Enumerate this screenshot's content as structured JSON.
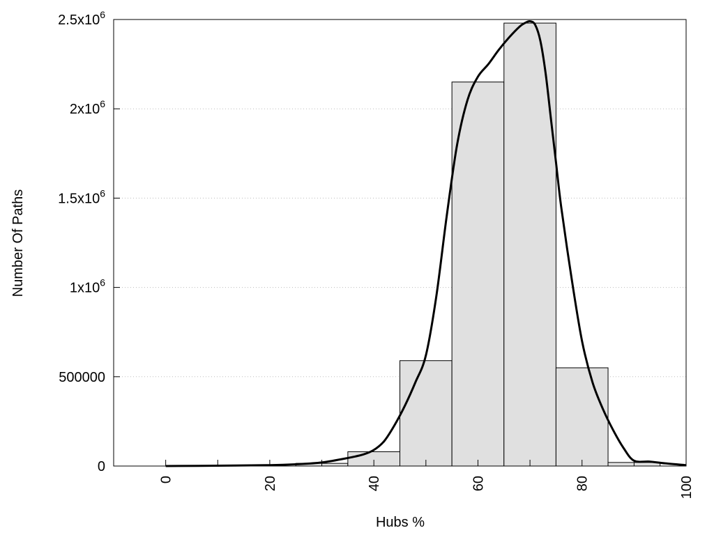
{
  "chart_data": {
    "type": "bar",
    "title": "",
    "xlabel": "Hubs %",
    "ylabel": "Number Of Paths",
    "xlim": [
      -10,
      100
    ],
    "ylim": [
      0,
      2500000
    ],
    "grid": "horizontal-dotted",
    "legend": "none",
    "bin_width": 10,
    "bars": [
      {
        "x": 30,
        "value": 15000
      },
      {
        "x": 40,
        "value": 80000
      },
      {
        "x": 50,
        "value": 590000
      },
      {
        "x": 60,
        "value": 2150000
      },
      {
        "x": 70,
        "value": 2480000
      },
      {
        "x": 80,
        "value": 550000
      },
      {
        "x": 90,
        "value": 20000
      }
    ],
    "curve": {
      "x": [
        0,
        10,
        20,
        25,
        30,
        35,
        38,
        40,
        42,
        44,
        46,
        48,
        50,
        52,
        54,
        56,
        58,
        60,
        62,
        64,
        66,
        68,
        69,
        70,
        71,
        72,
        73,
        74,
        75,
        76,
        78,
        80,
        82,
        84,
        86,
        88,
        90,
        93,
        96,
        100
      ],
      "y": [
        0,
        2000,
        5000,
        10000,
        20000,
        45000,
        65000,
        90000,
        140000,
        230000,
        340000,
        470000,
        620000,
        950000,
        1400000,
        1800000,
        2050000,
        2180000,
        2250000,
        2330000,
        2400000,
        2460000,
        2480000,
        2490000,
        2470000,
        2380000,
        2200000,
        1950000,
        1700000,
        1450000,
        1050000,
        700000,
        470000,
        320000,
        200000,
        100000,
        30000,
        25000,
        15000,
        5000
      ]
    },
    "x_ticks": [
      "0",
      "20",
      "40",
      "60",
      "80",
      "100"
    ],
    "x_tick_values": [
      0,
      20,
      40,
      60,
      80,
      100
    ],
    "x_minor_tick_values": [
      10,
      30,
      50,
      70,
      90
    ],
    "y_ticks": [
      {
        "value": 0,
        "base": "0",
        "exp": ""
      },
      {
        "value": 500000,
        "base": "500000",
        "exp": ""
      },
      {
        "value": 1000000,
        "base": "1x10",
        "exp": "6"
      },
      {
        "value": 1500000,
        "base": "1.5x10",
        "exp": "6"
      },
      {
        "value": 2000000,
        "base": "2x10",
        "exp": "6"
      },
      {
        "value": 2500000,
        "base": "2.5x10",
        "exp": "6"
      }
    ],
    "colors": {
      "bar_fill": "#e0e0e0",
      "bar_stroke": "#000000",
      "curve": "#000000",
      "grid": "#bbbbbb"
    }
  }
}
